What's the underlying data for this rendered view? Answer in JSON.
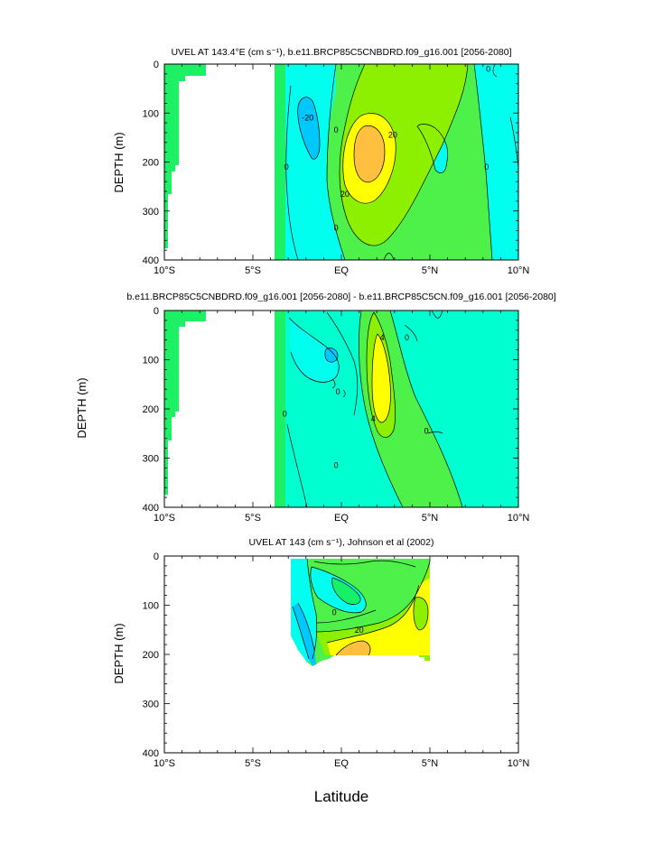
{
  "figure": {
    "xlabel": "Latitude"
  },
  "colors": {
    "cyan_dark": "#00c8ff",
    "cyan": "#00ffee",
    "teal": "#00ffd0",
    "green_bright": "#19f06a",
    "green": "#4ef04a",
    "lime": "#8cf000",
    "yellow": "#ffff00",
    "orange": "#ffc040",
    "orange_dark": "#ffa540",
    "land": "#1ef066"
  },
  "chart_data": [
    {
      "type": "contour",
      "title": "UVEL AT 143.4°E (cm s⁻¹), b.e11.BRCP85C5CNBDRD.f09_g16.001 [2056-2080]",
      "ylabel": "DEPTH (m)",
      "xlim": [
        -10,
        10
      ],
      "ylim": [
        400,
        0
      ],
      "x_ticks": [
        {
          "value": -10,
          "label": "10°S"
        },
        {
          "value": -5,
          "label": "5°S"
        },
        {
          "value": 0,
          "label": "EQ"
        },
        {
          "value": 5,
          "label": "5°N"
        },
        {
          "value": 10,
          "label": "10°N"
        }
      ],
      "y_ticks": [
        0,
        100,
        200,
        300,
        400
      ],
      "contour_labels": [
        {
          "text": "-20",
          "lat": -1.9,
          "depth": 110
        },
        {
          "text": "0",
          "lat": -3.1,
          "depth": 210
        },
        {
          "text": "0",
          "lat": -0.3,
          "depth": 135
        },
        {
          "text": "0",
          "lat": -0.3,
          "depth": 335
        },
        {
          "text": "20",
          "lat": 2.9,
          "depth": 145
        },
        {
          "text": "20",
          "lat": 0.2,
          "depth": 265
        },
        {
          "text": "0",
          "lat": 8.3,
          "depth": 10
        },
        {
          "text": "0",
          "lat": 8.2,
          "depth": 210
        }
      ]
    },
    {
      "type": "contour",
      "title": "b.e11.BRCP85C5CNBDRD.f09_g16.001 [2056-2080] - b.e11.BRCP85C5CN.f09_g16.001 [2056-2080]",
      "ylabel": "DEPTH (m)",
      "xlim": [
        -10,
        10
      ],
      "ylim": [
        400,
        0
      ],
      "x_ticks": [
        {
          "value": -10,
          "label": "10°S"
        },
        {
          "value": -5,
          "label": "5°S"
        },
        {
          "value": 0,
          "label": "EQ"
        },
        {
          "value": 5,
          "label": "5°N"
        },
        {
          "value": 10,
          "label": "10°N"
        }
      ],
      "y_ticks": [
        0,
        100,
        200,
        300,
        400
      ],
      "contour_labels": [
        {
          "text": "4",
          "lat": 2.3,
          "depth": 55
        },
        {
          "text": "0",
          "lat": 3.7,
          "depth": 55
        },
        {
          "text": "0",
          "lat": -0.2,
          "depth": 165
        },
        {
          "text": "0",
          "lat": -3.2,
          "depth": 210
        },
        {
          "text": "4",
          "lat": 1.8,
          "depth": 220
        },
        {
          "text": "0",
          "lat": 4.8,
          "depth": 245
        },
        {
          "text": "0",
          "lat": -0.3,
          "depth": 315
        }
      ]
    },
    {
      "type": "contour",
      "title": "UVEL AT 143 (cm s⁻¹), Johnson et al (2002)",
      "ylabel": "DEPTH (m)",
      "xlim": [
        -10,
        10
      ],
      "ylim": [
        400,
        0
      ],
      "x_ticks": [
        {
          "value": -10,
          "label": "10°S"
        },
        {
          "value": -5,
          "label": "5°S"
        },
        {
          "value": 0,
          "label": "EQ"
        },
        {
          "value": 5,
          "label": "5°N"
        },
        {
          "value": 10,
          "label": "10°N"
        }
      ],
      "y_ticks": [
        0,
        100,
        200,
        300,
        400
      ],
      "contour_labels": [
        {
          "text": "0",
          "lat": -0.4,
          "depth": 115
        },
        {
          "text": "20",
          "lat": 1.0,
          "depth": 150
        }
      ]
    }
  ]
}
